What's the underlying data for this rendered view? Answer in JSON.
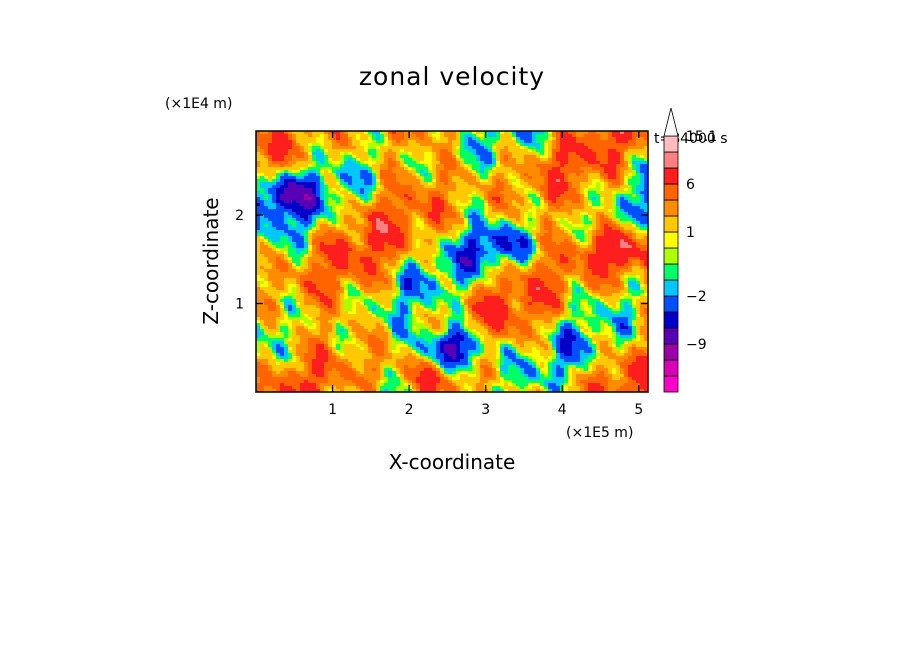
{
  "chart_data": {
    "type": "heatmap",
    "title": "zonal velocity",
    "xlabel": "X-coordinate",
    "ylabel": "Z-coordinate",
    "x_scale_label": "(×1E5 m)",
    "y_scale_label": "(×1E4 m)",
    "time_label": "t=84000 s",
    "xlim": [
      0,
      5.12
    ],
    "ylim": [
      0,
      2.95
    ],
    "x_ticks": [
      1,
      2,
      3,
      4,
      5
    ],
    "y_ticks": [
      1,
      2
    ],
    "x_tick_labels": [
      "1",
      "2",
      "3",
      "4",
      "5"
    ],
    "y_tick_labels": [
      "1",
      "2"
    ],
    "colorbar": {
      "levels_bottom_to_top": [
        {
          "color": "#ff00cc"
        },
        {
          "color": "#d900b8"
        },
        {
          "color": "#9b00a8",
          "label": "−9"
        },
        {
          "color": "#5a00b4"
        },
        {
          "color": "#0000c8"
        },
        {
          "color": "#0050ff",
          "label": "−2"
        },
        {
          "color": "#00c8ff"
        },
        {
          "color": "#00ff66"
        },
        {
          "color": "#aaff00"
        },
        {
          "color": "#ffff00",
          "label": "1"
        },
        {
          "color": "#ffc800"
        },
        {
          "color": "#ff8c00"
        },
        {
          "color": "#ff6400",
          "label": "6"
        },
        {
          "color": "#ff1e1e"
        },
        {
          "color": "#ff8080"
        },
        {
          "color": "#ffbcbc",
          "label": "15.1"
        }
      ],
      "extend": "max"
    },
    "features": [
      {
        "x": 2.6,
        "z": 0.5,
        "value": -9
      },
      {
        "x": 3.2,
        "z": 1.65,
        "value": -3
      },
      {
        "x": 0.3,
        "z": 2.25,
        "value": -5
      },
      {
        "x": 4.7,
        "z": 1.6,
        "value": 9
      },
      {
        "x": 2.3,
        "z": 0.15,
        "value": 6
      }
    ]
  }
}
